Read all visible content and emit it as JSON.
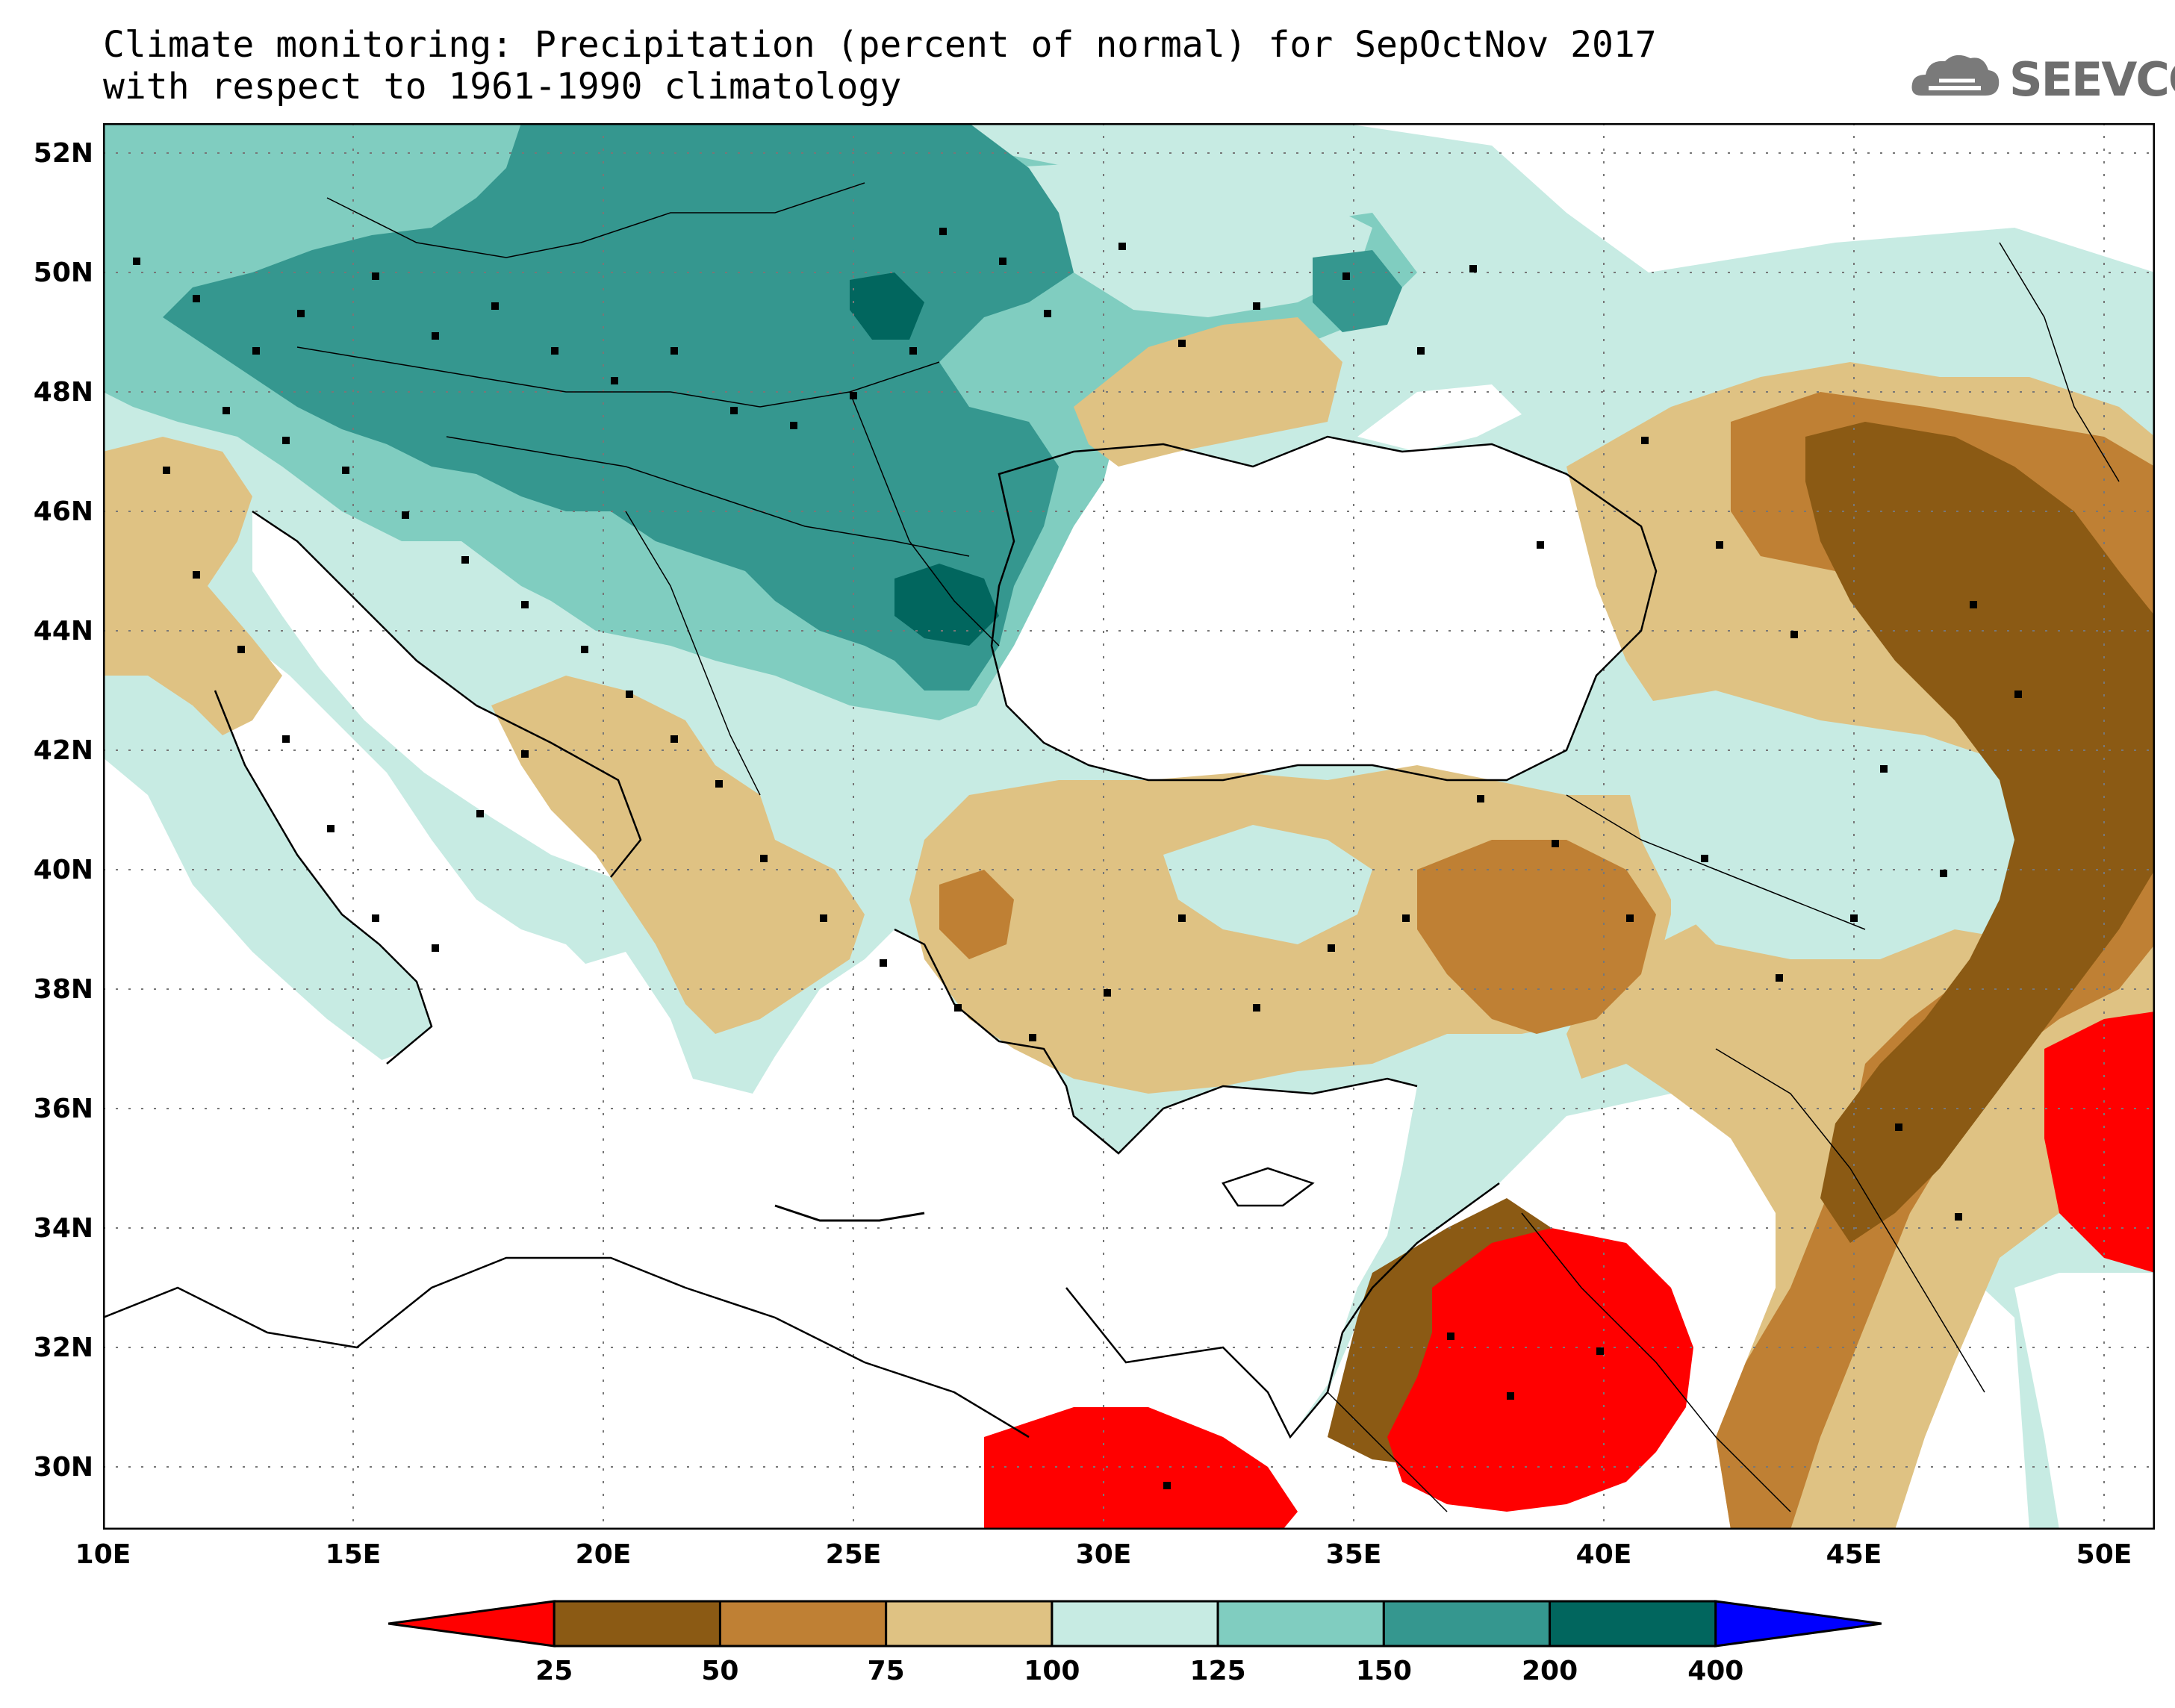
{
  "title": {
    "line1": "Climate monitoring: Precipitation (percent of normal) for SepOctNov 2017",
    "line2": "with respect to 1961-1990 climatology"
  },
  "logo": {
    "text": "SEEVCCC",
    "icon": "cloud-icon"
  },
  "map": {
    "lat_labels": [
      "52N",
      "50N",
      "48N",
      "46N",
      "44N",
      "42N",
      "40N",
      "38N",
      "36N",
      "34N",
      "32N",
      "30N"
    ],
    "lon_labels": [
      "10E",
      "15E",
      "20E",
      "25E",
      "30E",
      "35E",
      "40E",
      "45E",
      "50E"
    ],
    "grid": true,
    "extent": {
      "lon": [
        10,
        51
      ],
      "lat": [
        29,
        52.5
      ]
    }
  },
  "legend": {
    "bins": [
      "<25",
      "25-50",
      "50-75",
      "75-100",
      "100-125",
      "125-150",
      "150-200",
      "200-400",
      ">400"
    ],
    "colors": [
      "#ff0000",
      "#8b5a14",
      "#bf8034",
      "#dfc283",
      "#c7ebe3",
      "#80cdc0",
      "#35978f",
      "#01665e",
      "#0000ff"
    ],
    "labels": [
      "25",
      "50",
      "75",
      "100",
      "125",
      "150",
      "200",
      "400"
    ]
  },
  "colors": {
    "sea": "#ffffff",
    "red": "#ff0000",
    "dark_brown": "#8b5a14",
    "brown": "#bf8034",
    "tan": "#dfc283",
    "pale_teal": "#c7ebe3",
    "teal": "#80cdc0",
    "dark_teal": "#35978f",
    "darkest_teal": "#01665e"
  }
}
